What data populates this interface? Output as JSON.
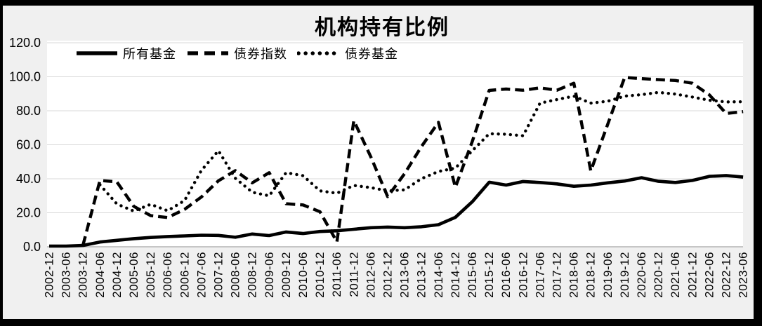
{
  "frame": {
    "background": "#f0f0f0",
    "border_color": "#000000"
  },
  "chart_data": {
    "type": "line",
    "title": "机构持有比例",
    "xlabel": "",
    "ylabel": "",
    "ylim": [
      0,
      120
    ],
    "grid": "horizontal",
    "legend_position": "top-inside",
    "plot_bg": "#ffffff",
    "grid_color": "#d9d9d9",
    "axis_color": "#b3b3b3",
    "line_color": "#000000",
    "text_color": "#000000",
    "y_ticks": [
      "0.0",
      "20.0",
      "40.0",
      "60.0",
      "80.0",
      "100.0",
      "120.0"
    ],
    "x_labels": [
      "2002-12",
      "2003-06",
      "2003-12",
      "2004-06",
      "2004-12",
      "2005-06",
      "2005-12",
      "2006-06",
      "2006-12",
      "2007-06",
      "2007-12",
      "2008-06",
      "2008-12",
      "2009-06",
      "2009-12",
      "2010-06",
      "2010-12",
      "2011-06",
      "2011-12",
      "2012-06",
      "2012-12",
      "2013-06",
      "2013-12",
      "2014-06",
      "2014-12",
      "2015-06",
      "2015-12",
      "2016-06",
      "2016-12",
      "2017-06",
      "2017-12",
      "2018-06",
      "2018-12",
      "2019-06",
      "2019-12",
      "2020-06",
      "2020-12",
      "2021-06",
      "2021-12",
      "2022-06",
      "2022-12",
      "2023-06"
    ],
    "series": [
      {
        "name": "所有基金",
        "style": "solid",
        "values": [
          0.4,
          0.4,
          0.8,
          2.8,
          3.8,
          4.8,
          5.5,
          6.0,
          6.4,
          6.8,
          6.7,
          5.6,
          7.5,
          6.6,
          8.7,
          7.8,
          9.0,
          9.4,
          10.3,
          11.2,
          11.6,
          11.2,
          11.8,
          13.0,
          17.3,
          26.5,
          38.0,
          36.3,
          38.4,
          37.8,
          37.0,
          35.6,
          36.3,
          37.6,
          38.7,
          40.6,
          38.5,
          37.8,
          39.0,
          41.4,
          41.9,
          41.0
        ]
      },
      {
        "name": "债券指数",
        "style": "dashed",
        "values": [
          null,
          null,
          1.0,
          39.0,
          38.2,
          23.8,
          18.3,
          17.2,
          22.0,
          29.3,
          38.8,
          44.8,
          37.6,
          43.6,
          25.3,
          24.6,
          20.6,
          2.9,
          74.2,
          53.0,
          29.5,
          43.0,
          59.0,
          73.2,
          35.0,
          62.0,
          92.0,
          92.8,
          92.1,
          93.5,
          92.1,
          96.2,
          44.6,
          72.0,
          99.6,
          98.9,
          98.3,
          97.8,
          96.2,
          89.4,
          78.4,
          79.5
        ]
      },
      {
        "name": "债券基金",
        "style": "dotted",
        "values": [
          null,
          null,
          null,
          36.5,
          25.2,
          21.0,
          25.0,
          21.2,
          27.2,
          45.0,
          56.5,
          40.3,
          32.1,
          30.0,
          43.6,
          41.8,
          32.9,
          31.5,
          36.1,
          34.8,
          32.9,
          33.5,
          40.1,
          44.3,
          46.3,
          56.5,
          66.5,
          66.2,
          65.3,
          84.5,
          86.6,
          88.6,
          84.5,
          85.6,
          88.6,
          89.5,
          90.8,
          89.8,
          88.1,
          86.2,
          85.2,
          85.3
        ]
      }
    ]
  }
}
